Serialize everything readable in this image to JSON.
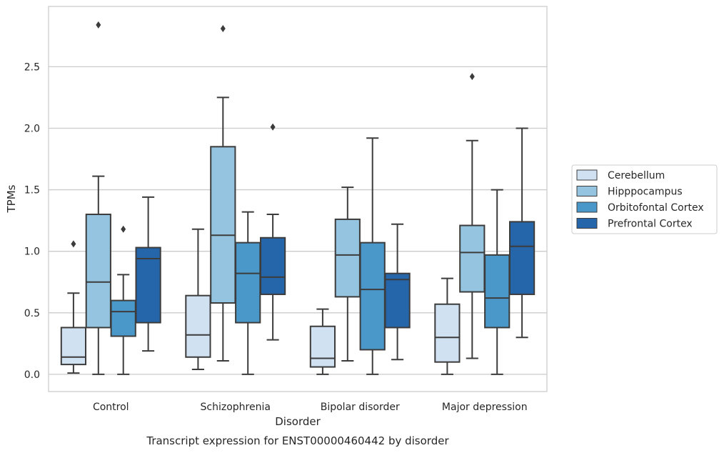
{
  "chart_data": {
    "type": "box",
    "title": "",
    "caption": "Transcript expression for ENST00000460442 by disorder",
    "xlabel": "Disorder",
    "ylabel": "TPMs",
    "ylim": [
      -0.14,
      2.99
    ],
    "yticks": [
      "0.0",
      "0.5",
      "1.0",
      "1.5",
      "2.0",
      "2.5"
    ],
    "grid": "horizontal",
    "legend_position": "right",
    "categories": [
      "Control",
      "Schizophrenia",
      "Bipolar disorder",
      "Major depression"
    ],
    "series": [
      {
        "name": "Cerebellum",
        "color": "#d0e1f2",
        "boxes": [
          {
            "whisker_low": 0.01,
            "q1": 0.08,
            "median": 0.14,
            "q3": 0.38,
            "whisker_high": 0.66,
            "outliers": [
              1.06
            ]
          },
          {
            "whisker_low": 0.04,
            "q1": 0.14,
            "median": 0.32,
            "q3": 0.64,
            "whisker_high": 1.18,
            "outliers": []
          },
          {
            "whisker_low": 0.0,
            "q1": 0.06,
            "median": 0.13,
            "q3": 0.39,
            "whisker_high": 0.53,
            "outliers": []
          },
          {
            "whisker_low": 0.0,
            "q1": 0.1,
            "median": 0.3,
            "q3": 0.57,
            "whisker_high": 0.78,
            "outliers": []
          }
        ]
      },
      {
        "name": "Hipppocampus",
        "color": "#94c4df",
        "boxes": [
          {
            "whisker_low": 0.0,
            "q1": 0.38,
            "median": 0.75,
            "q3": 1.3,
            "whisker_high": 1.61,
            "outliers": [
              2.84
            ]
          },
          {
            "whisker_low": 0.11,
            "q1": 0.58,
            "median": 1.13,
            "q3": 1.85,
            "whisker_high": 2.25,
            "outliers": [
              2.81
            ]
          },
          {
            "whisker_low": 0.11,
            "q1": 0.63,
            "median": 0.97,
            "q3": 1.26,
            "whisker_high": 1.52,
            "outliers": []
          },
          {
            "whisker_low": 0.13,
            "q1": 0.67,
            "median": 0.99,
            "q3": 1.21,
            "whisker_high": 1.9,
            "outliers": [
              2.42
            ]
          }
        ]
      },
      {
        "name": "Orbitofontal Cortex",
        "color": "#4a98c9",
        "boxes": [
          {
            "whisker_low": 0.0,
            "q1": 0.31,
            "median": 0.51,
            "q3": 0.6,
            "whisker_high": 0.81,
            "outliers": [
              1.18
            ]
          },
          {
            "whisker_low": 0.0,
            "q1": 0.42,
            "median": 0.82,
            "q3": 1.07,
            "whisker_high": 1.32,
            "outliers": []
          },
          {
            "whisker_low": 0.0,
            "q1": 0.2,
            "median": 0.69,
            "q3": 1.07,
            "whisker_high": 1.92,
            "outliers": []
          },
          {
            "whisker_low": 0.0,
            "q1": 0.38,
            "median": 0.62,
            "q3": 0.97,
            "whisker_high": 1.5,
            "outliers": []
          }
        ]
      },
      {
        "name": "Prefrontal Cortex",
        "color": "#2565aa",
        "boxes": [
          {
            "whisker_low": 0.19,
            "q1": 0.42,
            "median": 0.94,
            "q3": 1.03,
            "whisker_high": 1.44,
            "outliers": []
          },
          {
            "whisker_low": 0.28,
            "q1": 0.65,
            "median": 0.79,
            "q3": 1.11,
            "whisker_high": 1.3,
            "outliers": [
              2.01
            ]
          },
          {
            "whisker_low": 0.12,
            "q1": 0.38,
            "median": 0.77,
            "q3": 0.82,
            "whisker_high": 1.22,
            "outliers": []
          },
          {
            "whisker_low": 0.3,
            "q1": 0.65,
            "median": 1.04,
            "q3": 1.24,
            "whisker_high": 2.0,
            "outliers": []
          }
        ]
      }
    ]
  }
}
